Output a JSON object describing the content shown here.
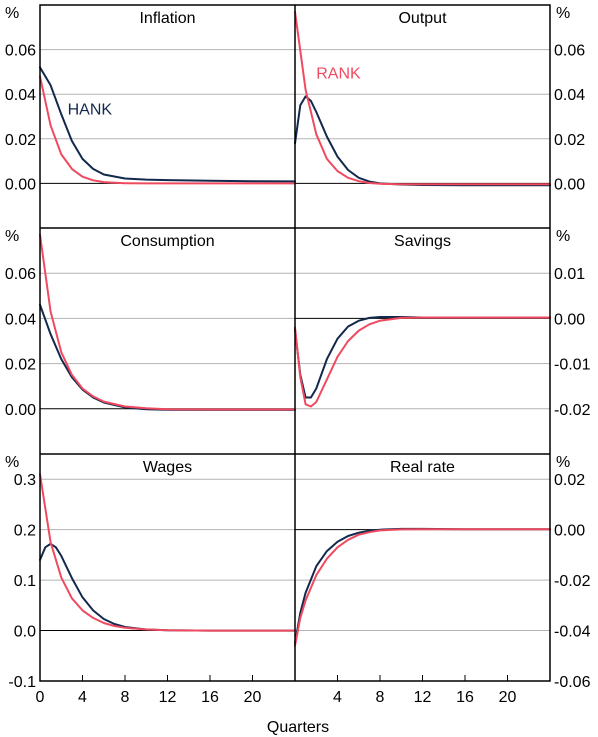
{
  "colors": {
    "hank": "#12284c",
    "rank": "#ef4a60",
    "grid": "#b3b3b3",
    "zero": "#000000",
    "frame": "#000000"
  },
  "xlabel": "Quarters",
  "chart_data": [
    {
      "type": "line",
      "title": "Inflation",
      "axis_side": "left",
      "unit_label": "%",
      "xlim": [
        0,
        24
      ],
      "ylim": [
        -0.02,
        0.08
      ],
      "yticks": [
        0,
        0.02,
        0.04,
        0.06
      ],
      "ytick_labels": [
        "0.00",
        "0.02",
        "0.04",
        "0.06"
      ],
      "grid": true,
      "annotations": [
        {
          "series": "HANK",
          "text": "HANK",
          "x": 2.6,
          "y": 0.031
        }
      ],
      "series": [
        {
          "name": "HANK",
          "color": "#12284c",
          "x": [
            0,
            1,
            2,
            3,
            4,
            5,
            6,
            8,
            10,
            12,
            16,
            20,
            24
          ],
          "values": [
            0.052,
            0.044,
            0.031,
            0.019,
            0.011,
            0.0065,
            0.004,
            0.0022,
            0.0017,
            0.0015,
            0.0012,
            0.001,
            0.0009
          ]
        },
        {
          "name": "RANK",
          "color": "#ef4a60",
          "x": [
            0,
            1,
            2,
            3,
            4,
            5,
            6,
            8,
            10,
            12,
            16,
            20,
            24
          ],
          "values": [
            0.048,
            0.026,
            0.013,
            0.0065,
            0.003,
            0.0014,
            0.0006,
            0.0001,
            0,
            0,
            0,
            0,
            0
          ]
        }
      ]
    },
    {
      "type": "line",
      "title": "Output",
      "axis_side": "right",
      "unit_label": "%",
      "xlim": [
        0,
        24
      ],
      "ylim": [
        -0.02,
        0.08
      ],
      "yticks": [
        0,
        0.02,
        0.04,
        0.06
      ],
      "ytick_labels": [
        "0.00",
        "0.02",
        "0.04",
        "0.06"
      ],
      "grid": true,
      "annotations": [
        {
          "series": "RANK",
          "text": "RANK",
          "x": 2.0,
          "y": 0.047
        }
      ],
      "series": [
        {
          "name": "HANK",
          "color": "#12284c",
          "x": [
            0,
            0.5,
            1,
            1.5,
            2,
            3,
            4,
            5,
            6,
            7,
            8,
            10,
            12,
            16,
            20,
            24
          ],
          "values": [
            0.018,
            0.035,
            0.039,
            0.037,
            0.032,
            0.021,
            0.012,
            0.006,
            0.0025,
            0.0008,
            0,
            -0.0005,
            -0.0007,
            -0.0008,
            -0.0008,
            -0.0008
          ]
        },
        {
          "name": "RANK",
          "color": "#ef4a60",
          "x": [
            0,
            1,
            2,
            3,
            4,
            5,
            6,
            7,
            8,
            10,
            12,
            16,
            20,
            24
          ],
          "values": [
            0.077,
            0.042,
            0.022,
            0.011,
            0.0055,
            0.0025,
            0.001,
            0.0002,
            -0.0002,
            -0.0004,
            -0.0004,
            -0.0004,
            -0.0004,
            -0.0004
          ]
        }
      ]
    },
    {
      "type": "line",
      "title": "Consumption",
      "axis_side": "left",
      "unit_label": "%",
      "xlim": [
        0,
        24
      ],
      "ylim": [
        -0.02,
        0.08
      ],
      "yticks": [
        0,
        0.02,
        0.04,
        0.06
      ],
      "ytick_labels": [
        "0.00",
        "0.02",
        "0.04",
        "0.06"
      ],
      "grid": true,
      "annotations": [],
      "series": [
        {
          "name": "HANK",
          "color": "#12284c",
          "x": [
            0,
            1,
            2,
            3,
            4,
            5,
            6,
            8,
            10,
            12,
            16,
            20,
            24
          ],
          "values": [
            0.046,
            0.033,
            0.022,
            0.014,
            0.0085,
            0.005,
            0.0028,
            0.0006,
            -0.0002,
            -0.0004,
            -0.0005,
            -0.0005,
            -0.0005
          ]
        },
        {
          "name": "RANK",
          "color": "#ef4a60",
          "x": [
            0,
            1,
            2,
            3,
            4,
            5,
            6,
            8,
            10,
            12,
            16,
            20,
            24
          ],
          "values": [
            0.077,
            0.043,
            0.025,
            0.015,
            0.009,
            0.0055,
            0.0032,
            0.001,
            0.0002,
            -0.0002,
            -0.0003,
            -0.0003,
            -0.0003
          ]
        }
      ]
    },
    {
      "type": "line",
      "title": "Savings",
      "axis_side": "right",
      "unit_label": "%",
      "xlim": [
        0,
        24
      ],
      "ylim": [
        -0.03,
        0.02
      ],
      "yticks": [
        -0.02,
        -0.01,
        0,
        0.01
      ],
      "ytick_labels": [
        "-0.02",
        "-0.01",
        "0.00",
        "0.01"
      ],
      "grid": true,
      "annotations": [],
      "series": [
        {
          "name": "HANK",
          "color": "#12284c",
          "x": [
            0,
            0.5,
            1,
            1.5,
            2,
            3,
            4,
            5,
            6,
            7,
            8,
            10,
            12,
            16,
            20,
            24
          ],
          "values": [
            -0.0025,
            -0.0125,
            -0.0175,
            -0.0175,
            -0.0155,
            -0.009,
            -0.0045,
            -0.0018,
            -0.0005,
            0.0001,
            0.0003,
            0.0003,
            0.0002,
            0.0002,
            0.0002,
            0.0002
          ]
        },
        {
          "name": "RANK",
          "color": "#ef4a60",
          "x": [
            0,
            0.5,
            1,
            1.5,
            2,
            3,
            4,
            5,
            6,
            7,
            8,
            10,
            12,
            16,
            20,
            24
          ],
          "values": [
            -0.002,
            -0.013,
            -0.019,
            -0.0195,
            -0.0185,
            -0.0135,
            -0.0085,
            -0.005,
            -0.0027,
            -0.0013,
            -0.0005,
            0.0001,
            0.0002,
            0.0002,
            0.0002,
            0.0002
          ]
        }
      ]
    },
    {
      "type": "line",
      "title": "Wages",
      "axis_side": "left",
      "unit_label": "%",
      "xlim": [
        0,
        24
      ],
      "ylim": [
        -0.1,
        0.35
      ],
      "yticks": [
        -0.1,
        0,
        0.1,
        0.2,
        0.3
      ],
      "ytick_labels": [
        "-0.1",
        "0.0",
        "0.1",
        "0.2",
        "0.3"
      ],
      "xticks": [
        0,
        4,
        8,
        12,
        16,
        20
      ],
      "xtick_labels": [
        "0",
        "4",
        "8",
        "12",
        "16",
        "20"
      ],
      "grid": true,
      "annotations": [],
      "series": [
        {
          "name": "HANK",
          "color": "#12284c",
          "x": [
            0,
            0.5,
            1,
            1.5,
            2,
            3,
            4,
            5,
            6,
            7,
            8,
            10,
            12,
            16,
            20,
            24
          ],
          "values": [
            0.14,
            0.165,
            0.172,
            0.165,
            0.148,
            0.104,
            0.066,
            0.04,
            0.023,
            0.013,
            0.007,
            0.002,
            0.0005,
            0,
            0,
            0
          ]
        },
        {
          "name": "RANK",
          "color": "#ef4a60",
          "x": [
            0,
            1,
            2,
            3,
            4,
            5,
            6,
            7,
            8,
            10,
            12,
            16,
            20,
            24
          ],
          "values": [
            0.31,
            0.175,
            0.105,
            0.064,
            0.04,
            0.025,
            0.015,
            0.009,
            0.0055,
            0.002,
            0.0005,
            0,
            0,
            0
          ]
        }
      ]
    },
    {
      "type": "line",
      "title": "Real rate",
      "axis_side": "right",
      "unit_label": "%",
      "xlim": [
        0,
        24
      ],
      "ylim": [
        -0.06,
        0.03
      ],
      "yticks": [
        -0.06,
        -0.04,
        -0.02,
        0,
        0.02
      ],
      "ytick_labels": [
        "-0.06",
        "-0.04",
        "-0.02",
        "0.00",
        "0.02"
      ],
      "xticks": [
        4,
        8,
        12,
        16,
        20
      ],
      "xtick_labels": [
        "4",
        "8",
        "12",
        "16",
        "20"
      ],
      "grid": true,
      "annotations": [],
      "series": [
        {
          "name": "HANK",
          "color": "#12284c",
          "x": [
            0,
            0.5,
            1,
            2,
            3,
            4,
            5,
            6,
            7,
            8,
            10,
            12,
            16,
            20,
            24
          ],
          "values": [
            -0.045,
            -0.033,
            -0.025,
            -0.0145,
            -0.0085,
            -0.0048,
            -0.0025,
            -0.0012,
            -0.0004,
            0,
            0.0003,
            0.0003,
            0.0002,
            0.0002,
            0.0002
          ]
        },
        {
          "name": "RANK",
          "color": "#ef4a60",
          "x": [
            0,
            0.5,
            1,
            2,
            3,
            4,
            5,
            6,
            7,
            8,
            10,
            12,
            16,
            20,
            24
          ],
          "values": [
            -0.046,
            -0.035,
            -0.028,
            -0.018,
            -0.0115,
            -0.007,
            -0.004,
            -0.002,
            -0.001,
            -0.0003,
            0.0001,
            0.0002,
            0.0002,
            0.0002,
            0.0002
          ]
        }
      ]
    }
  ]
}
